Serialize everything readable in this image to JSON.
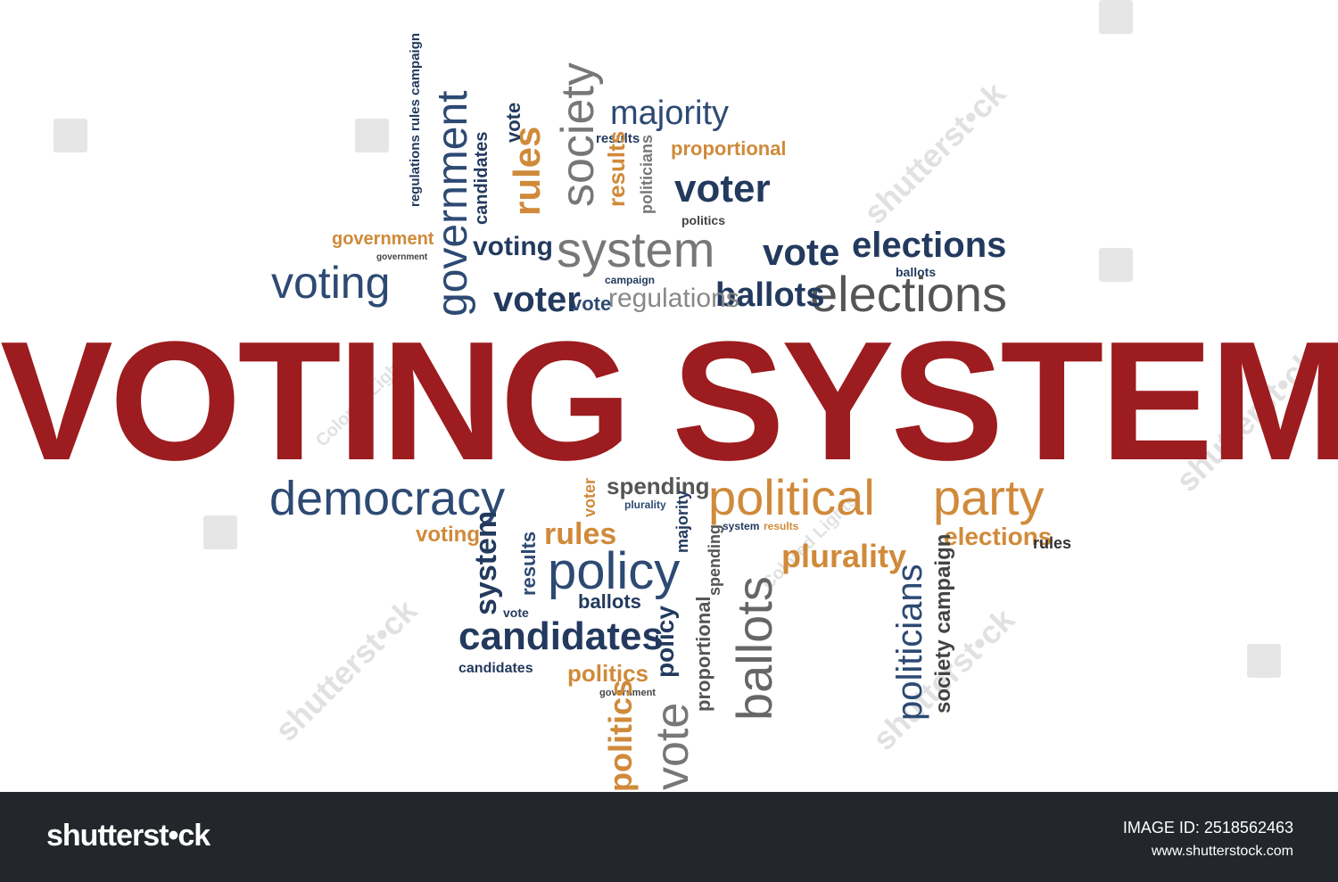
{
  "title": "VOTING SYSTEM",
  "colors": {
    "title": "#9c1c1f",
    "blue": "#2d4a73",
    "navy": "#233a5e",
    "orange": "#d08a3a",
    "gray": "#6a6a6a",
    "footer": "#23262b"
  },
  "watermark_text": [
    "shutterst•ck",
    "Colored Lights"
  ],
  "footer": {
    "brand": "shutterst•ck",
    "image_id_label": "IMAGE ID: 2518562463",
    "site": "www.shutterstock.com"
  },
  "cloud": {
    "voting": "voting",
    "government": "government",
    "government_small": "government",
    "government_tiny": "government",
    "elections": "elections",
    "elections_bold": "elections",
    "elections_mid": "elections",
    "majority": "majority",
    "society": "society",
    "system": "system",
    "voter": "voter",
    "voter_bold": "voter",
    "vote": "vote",
    "vote_small": "vote",
    "ballots": "ballots",
    "regulations": "regulations",
    "proportional": "proportional",
    "results": "results",
    "rules": "rules",
    "politics": "politics",
    "politicians": "politicians",
    "candidates": "candidates",
    "campaign": "campaign",
    "policy": "policy",
    "regulations_rules_campaign": "regulations rules campaign",
    "democracy": "democracy",
    "political": "political",
    "party": "party",
    "spending": "spending",
    "plurality": "plurality",
    "policy_big": "policy",
    "ballots_big": "ballots",
    "politicians_big": "politicians",
    "society_campaign": "society campaign",
    "candidates_big": "candidates",
    "vote_big": "vote",
    "policy_vert": "policy",
    "politics_vert": "politics",
    "proportional_vert": "proportional",
    "spending_vert": "spending",
    "system_vert": "system",
    "results_vert": "results",
    "rules_lower": "rules",
    "voting_lower": "voting",
    "elections_lower": "elections",
    "rules_right": "rules",
    "candidates_small": "candidates",
    "ballots_lower": "ballots",
    "vote_lower": "vote",
    "majority_lower": "majority",
    "plurality_small": "plurality",
    "politics_lower": "politics",
    "government_lower": "government",
    "voter_lower": "voter",
    "system_small": "system",
    "results_small": "results"
  }
}
